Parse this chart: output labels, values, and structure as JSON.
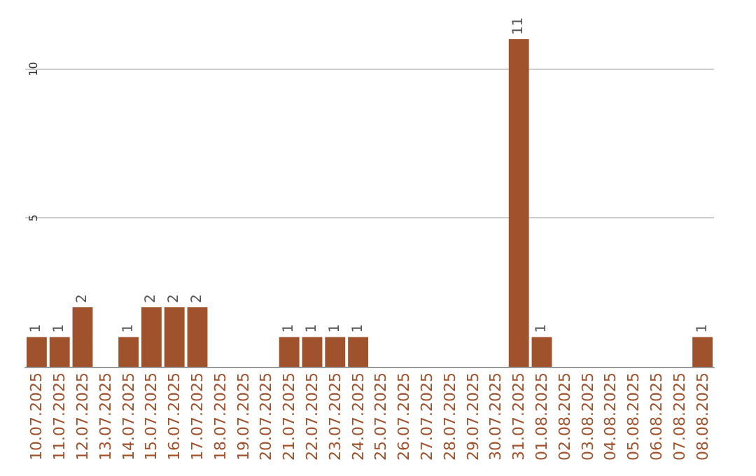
{
  "chart_data": {
    "type": "bar",
    "categories": [
      "10.07.2025",
      "11.07.2025",
      "12.07.2025",
      "13.07.2025",
      "14.07.2025",
      "15.07.2025",
      "16.07.2025",
      "17.07.2025",
      "18.07.2025",
      "19.07.2025",
      "20.07.2025",
      "21.07.2025",
      "22.07.2025",
      "23.07.2025",
      "24.07.2025",
      "25.07.2025",
      "26.07.2025",
      "27.07.2025",
      "28.07.2025",
      "29.07.2025",
      "30.07.2025",
      "31.07.2025",
      "01.08.2025",
      "02.08.2025",
      "03.08.2025",
      "04.08.2025",
      "05.08.2025",
      "06.08.2025",
      "07.08.2025",
      "08.08.2025"
    ],
    "values": [
      1,
      1,
      2,
      0,
      1,
      2,
      2,
      2,
      0,
      0,
      0,
      1,
      1,
      1,
      1,
      0,
      0,
      0,
      0,
      0,
      0,
      11,
      1,
      0,
      0,
      0,
      0,
      0,
      0,
      1
    ],
    "value_labels": [
      "1",
      "1",
      "2",
      null,
      "1",
      "2",
      "2",
      "2",
      null,
      null,
      null,
      "1",
      "1",
      "1",
      "1",
      null,
      null,
      null,
      null,
      null,
      null,
      "11",
      "1",
      null,
      null,
      null,
      null,
      null,
      null,
      "1"
    ],
    "color": "#a0522d",
    "ylim": [
      0,
      11
    ],
    "yticks": [
      5,
      10
    ],
    "grid": "y"
  }
}
